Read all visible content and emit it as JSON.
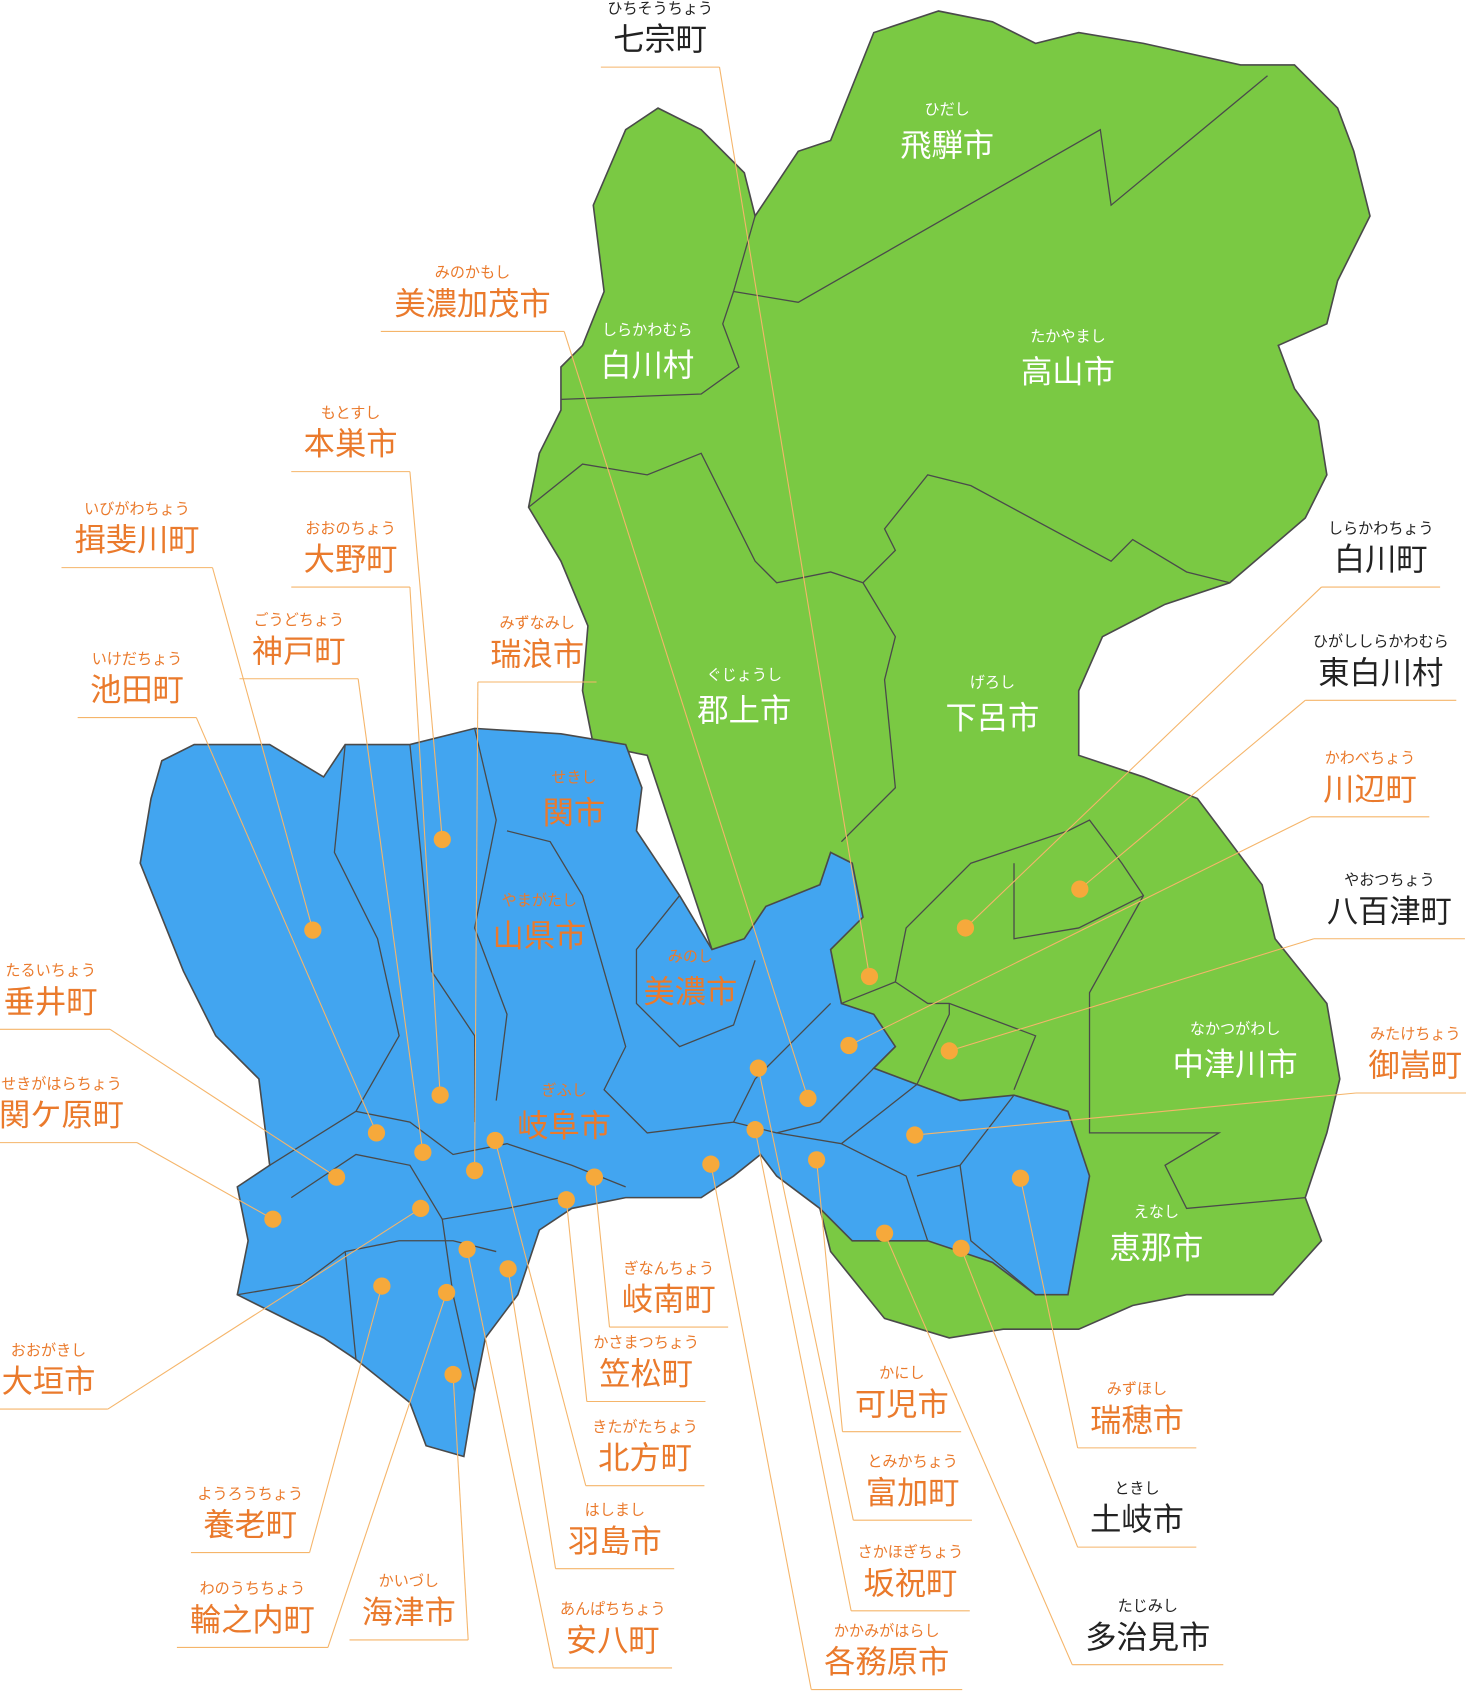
{
  "regions": [
    {
      "name": "飛騨市",
      "reading": "ひだし"
    },
    {
      "name": "高山市",
      "reading": "たかやまし"
    },
    {
      "name": "白川村",
      "reading": "しらかわむら"
    },
    {
      "name": "郡上市",
      "reading": "ぐじょうし"
    },
    {
      "name": "下呂市",
      "reading": "げろし"
    },
    {
      "name": "中津川市",
      "reading": "なかつがわし"
    },
    {
      "name": "恵那市",
      "reading": "えなし"
    },
    {
      "name": "関市",
      "reading": "せきし"
    },
    {
      "name": "山県市",
      "reading": "やまがたし"
    },
    {
      "name": "美濃市",
      "reading": "みのし"
    },
    {
      "name": "岐阜市",
      "reading": "ぎふし"
    }
  ],
  "callouts": [
    {
      "name": "七宗町",
      "reading": "ひちそうちょう"
    },
    {
      "name": "美濃加茂市",
      "reading": "みのかもし"
    },
    {
      "name": "本巣市",
      "reading": "もとすし"
    },
    {
      "name": "揖斐川町",
      "reading": "いびがわちょう"
    },
    {
      "name": "大野町",
      "reading": "おおのちょう"
    },
    {
      "name": "神戸町",
      "reading": "ごうどちょう"
    },
    {
      "name": "瑞浪市",
      "reading": "みずなみし"
    },
    {
      "name": "池田町",
      "reading": "いけだちょう"
    },
    {
      "name": "垂井町",
      "reading": "たるいちょう"
    },
    {
      "name": "関ケ原町",
      "reading": "せきがはらちょう"
    },
    {
      "name": "大垣市",
      "reading": "おおがきし"
    },
    {
      "name": "養老町",
      "reading": "ようろうちょう"
    },
    {
      "name": "輪之内町",
      "reading": "わのうちちょう"
    },
    {
      "name": "海津市",
      "reading": "かいづし"
    },
    {
      "name": "安八町",
      "reading": "あんぱちちょう"
    },
    {
      "name": "羽島市",
      "reading": "はしまし"
    },
    {
      "name": "北方町",
      "reading": "きたがたちょう"
    },
    {
      "name": "笠松町",
      "reading": "かさまつちょう"
    },
    {
      "name": "岐南町",
      "reading": "ぎなんちょう"
    },
    {
      "name": "各務原市",
      "reading": "かかみがはらし"
    },
    {
      "name": "坂祝町",
      "reading": "さかほぎちょう"
    },
    {
      "name": "富加町",
      "reading": "とみかちょう"
    },
    {
      "name": "可児市",
      "reading": "かにし"
    },
    {
      "name": "瑞穂市",
      "reading": "みずほし"
    },
    {
      "name": "土岐市",
      "reading": "ときし"
    },
    {
      "name": "多治見市",
      "reading": "たじみし"
    },
    {
      "name": "白川町",
      "reading": "しらかわちょう"
    },
    {
      "name": "東白川村",
      "reading": "ひがししらかわむら"
    },
    {
      "name": "川辺町",
      "reading": "かわべちょう"
    },
    {
      "name": "八百津町",
      "reading": "やおつちょう"
    },
    {
      "name": "御嵩町",
      "reading": "みたけちょう"
    }
  ]
}
